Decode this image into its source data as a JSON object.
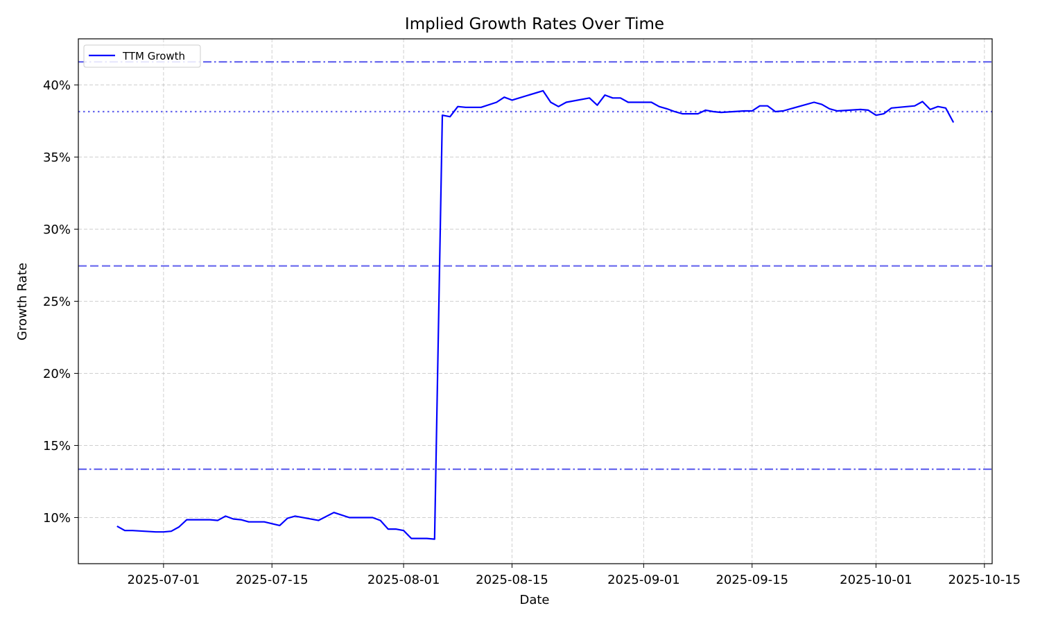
{
  "chart_data": {
    "type": "line",
    "title": "Implied Growth Rates Over Time",
    "xlabel": "Date",
    "ylabel": "Growth Rate",
    "x_ticks": [
      "2025-07-01",
      "2025-07-15",
      "2025-08-01",
      "2025-08-15",
      "2025-09-01",
      "2025-09-15",
      "2025-10-01",
      "2025-10-15"
    ],
    "y_ticks": [
      10,
      15,
      20,
      25,
      30,
      35,
      40
    ],
    "y_tick_format": "{v}%",
    "xlim": [
      "2025-06-20",
      "2025-10-16"
    ],
    "ylim": [
      6.8,
      43.2
    ],
    "grid": true,
    "legend_position": "top-left",
    "series": [
      {
        "name": "TTM Growth",
        "color": "#0000ff",
        "points": [
          [
            "2025-06-25",
            9.4
          ],
          [
            "2025-06-26",
            9.1
          ],
          [
            "2025-06-27",
            9.1
          ],
          [
            "2025-06-30",
            9.0
          ],
          [
            "2025-07-01",
            9.0
          ],
          [
            "2025-07-02",
            9.05
          ],
          [
            "2025-07-03",
            9.35
          ],
          [
            "2025-07-04",
            9.85
          ],
          [
            "2025-07-07",
            9.85
          ],
          [
            "2025-07-08",
            9.8
          ],
          [
            "2025-07-09",
            10.1
          ],
          [
            "2025-07-10",
            9.9
          ],
          [
            "2025-07-11",
            9.85
          ],
          [
            "2025-07-12",
            9.7
          ],
          [
            "2025-07-14",
            9.7
          ],
          [
            "2025-07-16",
            9.45
          ],
          [
            "2025-07-17",
            9.95
          ],
          [
            "2025-07-18",
            10.1
          ],
          [
            "2025-07-21",
            9.8
          ],
          [
            "2025-07-23",
            10.35
          ],
          [
            "2025-07-25",
            10.0
          ],
          [
            "2025-07-28",
            10.0
          ],
          [
            "2025-07-29",
            9.8
          ],
          [
            "2025-07-30",
            9.2
          ],
          [
            "2025-07-31",
            9.2
          ],
          [
            "2025-08-01",
            9.1
          ],
          [
            "2025-08-02",
            8.55
          ],
          [
            "2025-08-04",
            8.55
          ],
          [
            "2025-08-05",
            8.5
          ],
          [
            "2025-08-06",
            37.9
          ],
          [
            "2025-08-07",
            37.8
          ],
          [
            "2025-08-08",
            38.5
          ],
          [
            "2025-08-09",
            38.45
          ],
          [
            "2025-08-11",
            38.45
          ],
          [
            "2025-08-13",
            38.8
          ],
          [
            "2025-08-14",
            39.15
          ],
          [
            "2025-08-15",
            38.95
          ],
          [
            "2025-08-19",
            39.6
          ],
          [
            "2025-08-20",
            38.8
          ],
          [
            "2025-08-21",
            38.5
          ],
          [
            "2025-08-22",
            38.8
          ],
          [
            "2025-08-25",
            39.1
          ],
          [
            "2025-08-26",
            38.6
          ],
          [
            "2025-08-27",
            39.3
          ],
          [
            "2025-08-28",
            39.1
          ],
          [
            "2025-08-29",
            39.1
          ],
          [
            "2025-08-30",
            38.8
          ],
          [
            "2025-09-02",
            38.8
          ],
          [
            "2025-09-03",
            38.5
          ],
          [
            "2025-09-04",
            38.35
          ],
          [
            "2025-09-05",
            38.15
          ],
          [
            "2025-09-06",
            38.0
          ],
          [
            "2025-09-08",
            38.0
          ],
          [
            "2025-09-09",
            38.25
          ],
          [
            "2025-09-10",
            38.15
          ],
          [
            "2025-09-11",
            38.1
          ],
          [
            "2025-09-14",
            38.2
          ],
          [
            "2025-09-15",
            38.2
          ],
          [
            "2025-09-16",
            38.55
          ],
          [
            "2025-09-17",
            38.55
          ],
          [
            "2025-09-18",
            38.15
          ],
          [
            "2025-09-19",
            38.2
          ],
          [
            "2025-09-23",
            38.8
          ],
          [
            "2025-09-24",
            38.65
          ],
          [
            "2025-09-25",
            38.35
          ],
          [
            "2025-09-26",
            38.2
          ],
          [
            "2025-09-29",
            38.3
          ],
          [
            "2025-09-30",
            38.25
          ],
          [
            "2025-10-01",
            37.9
          ],
          [
            "2025-10-02",
            38.0
          ],
          [
            "2025-10-03",
            38.4
          ],
          [
            "2025-10-06",
            38.55
          ],
          [
            "2025-10-07",
            38.85
          ],
          [
            "2025-10-08",
            38.3
          ],
          [
            "2025-10-09",
            38.5
          ],
          [
            "2025-10-10",
            38.4
          ],
          [
            "2025-10-11",
            37.4
          ]
        ]
      }
    ],
    "reference_lines": [
      {
        "y": 41.6,
        "style": "dashdot",
        "color": "#6666ee"
      },
      {
        "y": 38.15,
        "style": "dotted",
        "color": "#6666ee"
      },
      {
        "y": 27.45,
        "style": "dashed",
        "color": "#6666ee"
      },
      {
        "y": 13.35,
        "style": "dashdot",
        "color": "#6666ee"
      }
    ]
  }
}
